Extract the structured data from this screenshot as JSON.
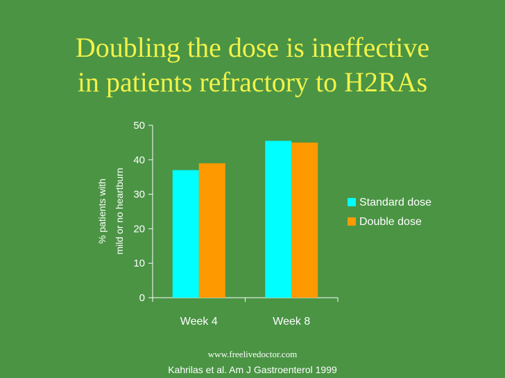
{
  "slide": {
    "title_line1": "Doubling the dose is ineffective",
    "title_line2": "in patients refractory to H2RAs",
    "watermark": "www.freelivedoctor.com",
    "citation": "Kahrilas et al. Am J Gastroenterol 1999"
  },
  "colors": {
    "background": "#4a9444",
    "title": "#f2f24a",
    "standard_dose": "#00ffff",
    "double_dose": "#ff9900",
    "text": "#ffffff"
  },
  "chart_data": {
    "type": "bar",
    "categories": [
      "Week 4",
      "Week 8"
    ],
    "series": [
      {
        "name": "Standard dose",
        "values": [
          37,
          45.5
        ]
      },
      {
        "name": "Double dose",
        "values": [
          39,
          45
        ]
      }
    ],
    "ylabel_line1": "% patients with",
    "ylabel_line2": "mild or no heartburn",
    "xlabel": "",
    "ylim": [
      0,
      50
    ],
    "yticks": [
      0,
      10,
      20,
      30,
      40,
      50
    ],
    "legend_position": "right",
    "grid": false
  }
}
